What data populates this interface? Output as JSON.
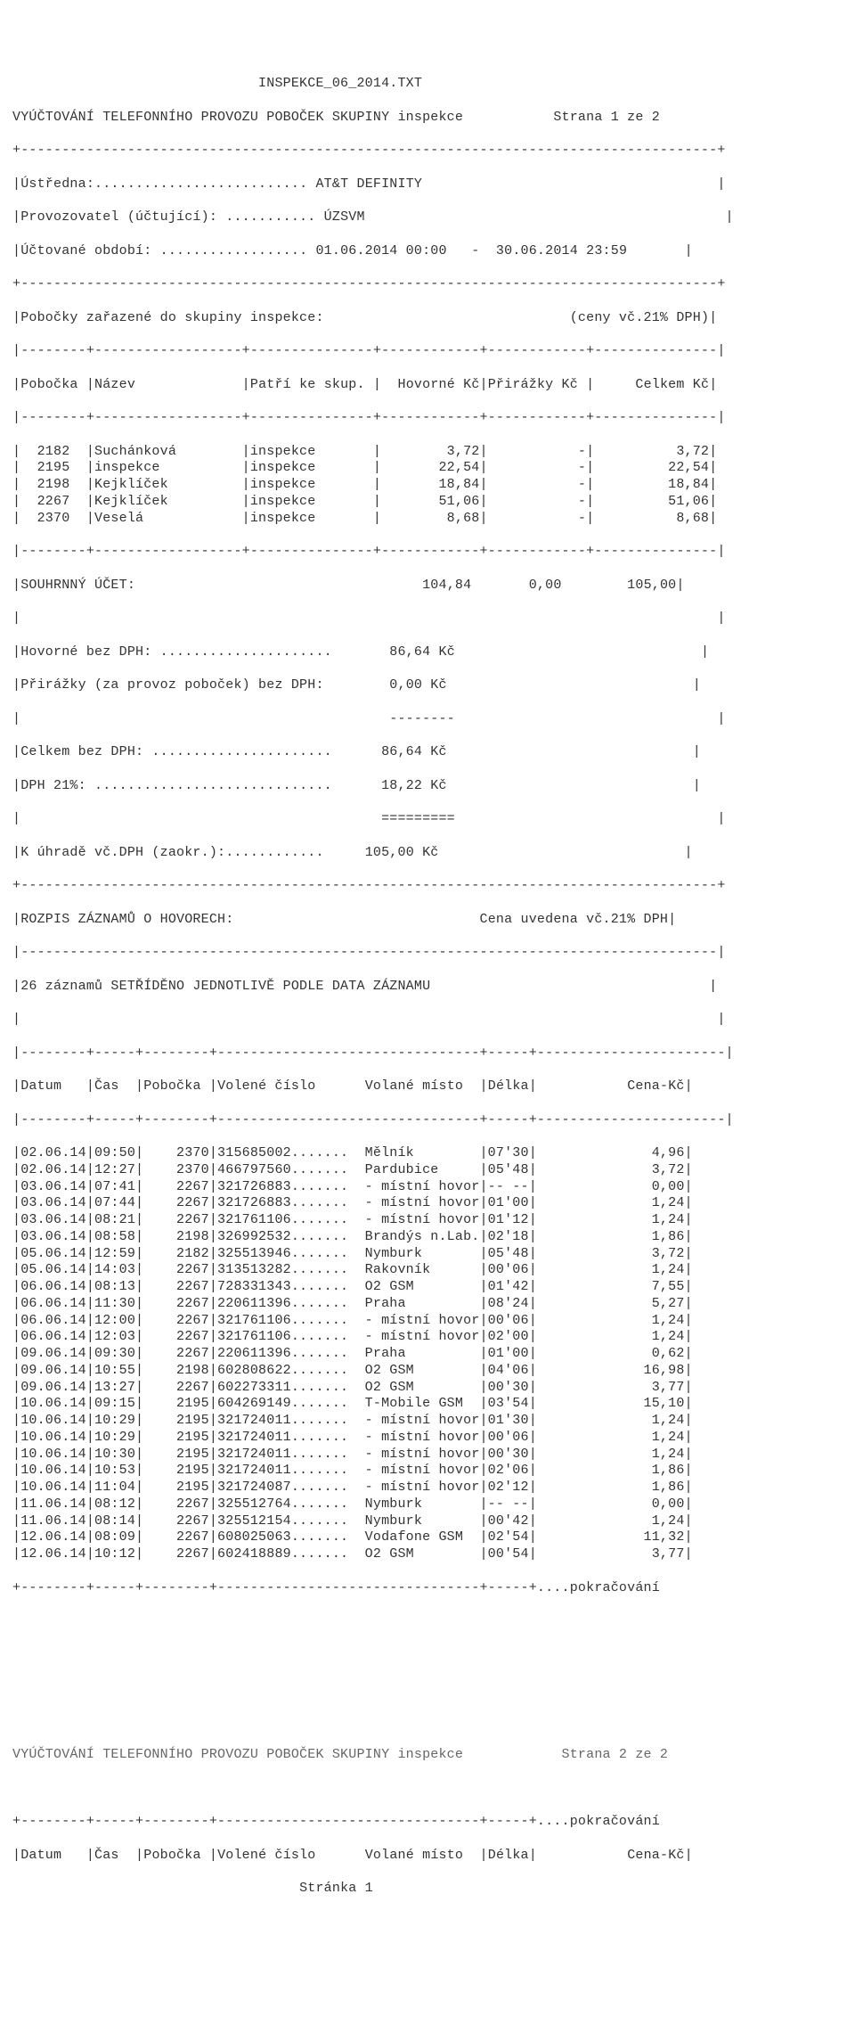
{
  "file_title": "INSPEKCE_06_2014.TXT",
  "main_title_left": "VYÚČTOVÁNÍ TELEFONNÍHO PROVOZU POBOČEK SKUPINY inspekce",
  "page_indicator_1": "Strana 1 ze 2",
  "header": {
    "ustredna_label": "Ústředna:",
    "ustredna_value": "AT&T DEFINITY",
    "provozovatel_label": "Provozovatel (účtující):",
    "provozovatel_value": "ÚZSVM",
    "obdobi_label": "Účtované období:",
    "obdobi_from": "01.06.2014 00:00",
    "obdobi_to": "30.06.2014 23:59"
  },
  "group_line": "Pobočky zařazené do skupiny inspekce:",
  "ceny_note": "(ceny vč.21% DPH)",
  "branch_table": {
    "headers": {
      "pobocka": "Pobočka",
      "nazev": "Název",
      "patri": "Patří ke skup.",
      "hovorne": "Hovorné Kč",
      "prirazky": "Přirážky Kč",
      "celkem": "Celkem Kč"
    },
    "rows": [
      {
        "pobocka": "2182",
        "nazev": "Suchánková",
        "patri": "inspekce",
        "hovorne": "3,72",
        "prirazky": "-",
        "celkem": "3,72"
      },
      {
        "pobocka": "2195",
        "nazev": "inspekce",
        "patri": "inspekce",
        "hovorne": "22,54",
        "prirazky": "-",
        "celkem": "22,54"
      },
      {
        "pobocka": "2198",
        "nazev": "Kejklíček",
        "patri": "inspekce",
        "hovorne": "18,84",
        "prirazky": "-",
        "celkem": "18,84"
      },
      {
        "pobocka": "2267",
        "nazev": "Kejklíček",
        "patri": "inspekce",
        "hovorne": "51,06",
        "prirazky": "-",
        "celkem": "51,06"
      },
      {
        "pobocka": "2370",
        "nazev": "Veselá",
        "patri": "inspekce",
        "hovorne": "8,68",
        "prirazky": "-",
        "celkem": "8,68"
      }
    ]
  },
  "summary": {
    "souhrnny_label": "SOUHRNNÝ ÚČET:",
    "souhrnny_hov": "104,84",
    "souhrnny_pri": "0,00",
    "souhrnny_cel": "105,00",
    "hov_bez_dph_label": "Hovorné bez DPH:",
    "hov_bez_dph_val": "86,64 Kč",
    "prir_bez_dph_label": "Přirážky (za provoz poboček) bez DPH:",
    "prir_bez_dph_val": "0,00 Kč",
    "celkem_bez_dph_label": "Celkem bez DPH:",
    "celkem_bez_dph_val": "86,64 Kč",
    "dph_label": "DPH 21%:",
    "dph_val": "18,22 Kč",
    "k_uhrade_label": "K úhradě vč.DPH (zaokr.):",
    "k_uhrade_val": "105,00 Kč"
  },
  "rozpis_title": "ROZPIS ZÁZNAMŮ O HOVORECH:",
  "rozpis_note": "Cena uvedena vč.21% DPH",
  "sort_note": "26 záznamů SETŘÍDĚNO JEDNOTLIVĚ PODLE DATA ZÁZNAMU",
  "call_headers": {
    "datum": "Datum",
    "cas": "Čas",
    "pobocka": "Pobočka",
    "volene": "Volené číslo",
    "volane": "Volané místo",
    "delka": "Délka",
    "cena": "Cena-Kč"
  },
  "calls": [
    {
      "d": "02.06.14",
      "t": "09:50",
      "p": "2370",
      "num": "315685002",
      "dest": "Mělník",
      "len": "07'30",
      "cost": "4,96"
    },
    {
      "d": "02.06.14",
      "t": "12:27",
      "p": "2370",
      "num": "466797560",
      "dest": "Pardubice",
      "len": "05'48",
      "cost": "3,72"
    },
    {
      "d": "03.06.14",
      "t": "07:41",
      "p": "2267",
      "num": "321726883",
      "dest": "- místní hovor",
      "len": "-- --",
      "cost": "0,00"
    },
    {
      "d": "03.06.14",
      "t": "07:44",
      "p": "2267",
      "num": "321726883",
      "dest": "- místní hovor",
      "len": "01'00",
      "cost": "1,24"
    },
    {
      "d": "03.06.14",
      "t": "08:21",
      "p": "2267",
      "num": "321761106",
      "dest": "- místní hovor",
      "len": "01'12",
      "cost": "1,24"
    },
    {
      "d": "03.06.14",
      "t": "08:58",
      "p": "2198",
      "num": "326992532",
      "dest": "Brandýs n.Lab.",
      "len": "02'18",
      "cost": "1,86"
    },
    {
      "d": "05.06.14",
      "t": "12:59",
      "p": "2182",
      "num": "325513946",
      "dest": "Nymburk",
      "len": "05'48",
      "cost": "3,72"
    },
    {
      "d": "05.06.14",
      "t": "14:03",
      "p": "2267",
      "num": "313513282",
      "dest": "Rakovník",
      "len": "00'06",
      "cost": "1,24"
    },
    {
      "d": "06.06.14",
      "t": "08:13",
      "p": "2267",
      "num": "728331343",
      "dest": "O2 GSM",
      "len": "01'42",
      "cost": "7,55"
    },
    {
      "d": "06.06.14",
      "t": "11:30",
      "p": "2267",
      "num": "220611396",
      "dest": "Praha",
      "len": "08'24",
      "cost": "5,27"
    },
    {
      "d": "06.06.14",
      "t": "12:00",
      "p": "2267",
      "num": "321761106",
      "dest": "- místní hovor",
      "len": "00'06",
      "cost": "1,24"
    },
    {
      "d": "06.06.14",
      "t": "12:03",
      "p": "2267",
      "num": "321761106",
      "dest": "- místní hovor",
      "len": "02'00",
      "cost": "1,24"
    },
    {
      "d": "09.06.14",
      "t": "09:30",
      "p": "2267",
      "num": "220611396",
      "dest": "Praha",
      "len": "01'00",
      "cost": "0,62"
    },
    {
      "d": "09.06.14",
      "t": "10:55",
      "p": "2198",
      "num": "602808622",
      "dest": "O2 GSM",
      "len": "04'06",
      "cost": "16,98"
    },
    {
      "d": "09.06.14",
      "t": "13:27",
      "p": "2267",
      "num": "602273311",
      "dest": "O2 GSM",
      "len": "00'30",
      "cost": "3,77"
    },
    {
      "d": "10.06.14",
      "t": "09:15",
      "p": "2195",
      "num": "604269149",
      "dest": "T-Mobile GSM",
      "len": "03'54",
      "cost": "15,10"
    },
    {
      "d": "10.06.14",
      "t": "10:29",
      "p": "2195",
      "num": "321724011",
      "dest": "- místní hovor",
      "len": "01'30",
      "cost": "1,24"
    },
    {
      "d": "10.06.14",
      "t": "10:29",
      "p": "2195",
      "num": "321724011",
      "dest": "- místní hovor",
      "len": "00'06",
      "cost": "1,24"
    },
    {
      "d": "10.06.14",
      "t": "10:30",
      "p": "2195",
      "num": "321724011",
      "dest": "- místní hovor",
      "len": "00'30",
      "cost": "1,24"
    },
    {
      "d": "10.06.14",
      "t": "10:53",
      "p": "2195",
      "num": "321724011",
      "dest": "- místní hovor",
      "len": "02'06",
      "cost": "1,86"
    },
    {
      "d": "10.06.14",
      "t": "11:04",
      "p": "2195",
      "num": "321724087",
      "dest": "- místní hovor",
      "len": "02'12",
      "cost": "1,86"
    },
    {
      "d": "11.06.14",
      "t": "08:12",
      "p": "2267",
      "num": "325512764",
      "dest": "Nymburk",
      "len": "-- --",
      "cost": "0,00"
    },
    {
      "d": "11.06.14",
      "t": "08:14",
      "p": "2267",
      "num": "325512154",
      "dest": "Nymburk",
      "len": "00'42",
      "cost": "1,24"
    },
    {
      "d": "12.06.14",
      "t": "08:09",
      "p": "2267",
      "num": "608025063",
      "dest": "Vodafone GSM",
      "len": "02'54",
      "cost": "11,32"
    },
    {
      "d": "12.06.14",
      "t": "10:12",
      "p": "2267",
      "num": "602418889",
      "dest": "O2 GSM",
      "len": "00'54",
      "cost": "3,77"
    }
  ],
  "continuation": "....pokračování",
  "page2_title_left": "VYÚČTOVÁNÍ TELEFONNÍHO PROVOZU POBOČEK SKUPINY inspekce",
  "page_indicator_2": "Strana 2 ze 2",
  "footer_page": "Stránka 1"
}
